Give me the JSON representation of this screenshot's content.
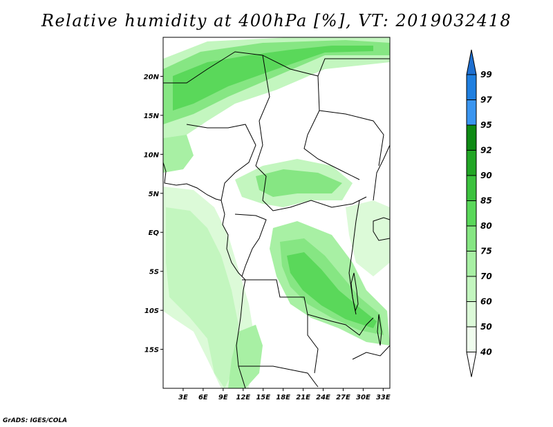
{
  "title": "Relative humidity at 400hPa [%], VT: 2019032418",
  "credit": "GrADS: IGES/COLA",
  "map": {
    "region": "Central Africa",
    "lon_range": [
      0,
      34
    ],
    "lat_range": [
      -20,
      25
    ],
    "lat_ticks": [
      {
        "value": 20,
        "label": "20N"
      },
      {
        "value": 15,
        "label": "15N"
      },
      {
        "value": 10,
        "label": "10N"
      },
      {
        "value": 5,
        "label": "5N"
      },
      {
        "value": 0,
        "label": "EQ"
      },
      {
        "value": -5,
        "label": "5S"
      },
      {
        "value": -10,
        "label": "10S"
      },
      {
        "value": -15,
        "label": "15S"
      }
    ],
    "lon_ticks": [
      {
        "value": 3,
        "label": "3E"
      },
      {
        "value": 6,
        "label": "6E"
      },
      {
        "value": 9,
        "label": "9E"
      },
      {
        "value": 12,
        "label": "12E"
      },
      {
        "value": 15,
        "label": "15E"
      },
      {
        "value": 18,
        "label": "18E"
      },
      {
        "value": 21,
        "label": "21E"
      },
      {
        "value": 24,
        "label": "24E"
      },
      {
        "value": 27,
        "label": "27E"
      },
      {
        "value": 30,
        "label": "30E"
      },
      {
        "value": 33,
        "label": "33E"
      }
    ]
  },
  "colorbar": {
    "levels": [
      {
        "label": "99",
        "color": "#1e6fd0"
      },
      {
        "label": "97",
        "color": "#1f7fe0"
      },
      {
        "label": "95",
        "color": "#3a95f0"
      },
      {
        "label": "92",
        "color": "#0e8a14"
      },
      {
        "label": "90",
        "color": "#22a625"
      },
      {
        "label": "85",
        "color": "#3cc23e"
      },
      {
        "label": "80",
        "color": "#5ad85a"
      },
      {
        "label": "75",
        "color": "#86e683"
      },
      {
        "label": "70",
        "color": "#a8f0a4"
      },
      {
        "label": "60",
        "color": "#c3f6bf"
      },
      {
        "label": "50",
        "color": "#dcfad8"
      },
      {
        "label": "40",
        "color": "#f0fdee"
      }
    ]
  }
}
